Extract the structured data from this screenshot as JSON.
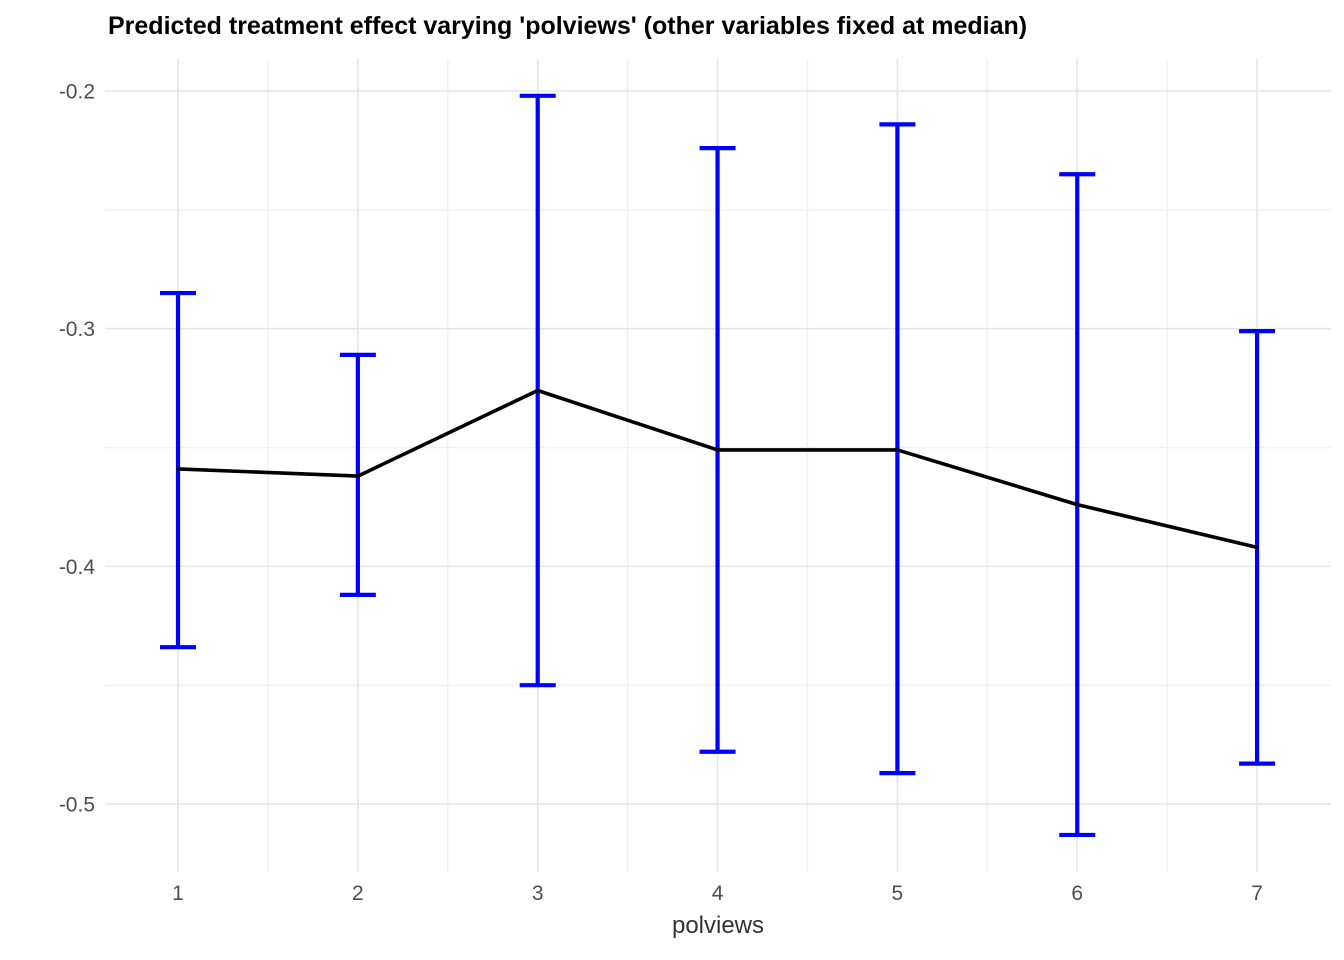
{
  "title": "Predicted treatment effect varying 'polviews' (other variables fixed at median)",
  "chart_data": {
    "type": "line",
    "title": "Predicted treatment effect varying 'polviews' (other variables fixed at median)",
    "xlabel": "polviews",
    "ylabel": "",
    "x": [
      1,
      2,
      3,
      4,
      5,
      6,
      7
    ],
    "series": [
      {
        "name": "fit",
        "values": [
          -0.359,
          -0.362,
          -0.326,
          -0.351,
          -0.351,
          -0.374,
          -0.392
        ]
      },
      {
        "name": "lower",
        "values": [
          -0.434,
          -0.412,
          -0.45,
          -0.478,
          -0.487,
          -0.513,
          -0.483
        ]
      },
      {
        "name": "upper",
        "values": [
          -0.285,
          -0.311,
          -0.202,
          -0.224,
          -0.214,
          -0.235,
          -0.301
        ]
      }
    ],
    "x_tick_labels": [
      "1",
      "2",
      "3",
      "4",
      "5",
      "6",
      "7"
    ],
    "x_tick_values": [
      1,
      2,
      3,
      4,
      5,
      6,
      7
    ],
    "x_minor_values": [
      1.5,
      2.5,
      3.5,
      4.5,
      5.5,
      6.5
    ],
    "y_tick_labels": [
      "-0.2",
      "-0.3",
      "-0.4",
      "-0.5"
    ],
    "y_tick_values": [
      -0.2,
      -0.3,
      -0.4,
      -0.5
    ],
    "y_minor_values": [
      -0.25,
      -0.35,
      -0.45
    ],
    "xlim": [
      0.594,
      7.411
    ],
    "ylim": [
      -0.5286,
      -0.1865
    ],
    "grid": true,
    "legend": "none",
    "colors": {
      "fit_line": "#000000",
      "errorbar": "#0000FF",
      "grid_major": "#E6E6E6",
      "grid_minor": "#F1F1F1",
      "tick_label": "#4D4D4D",
      "axis_title": "#333333",
      "background": "#FFFFFF"
    }
  }
}
